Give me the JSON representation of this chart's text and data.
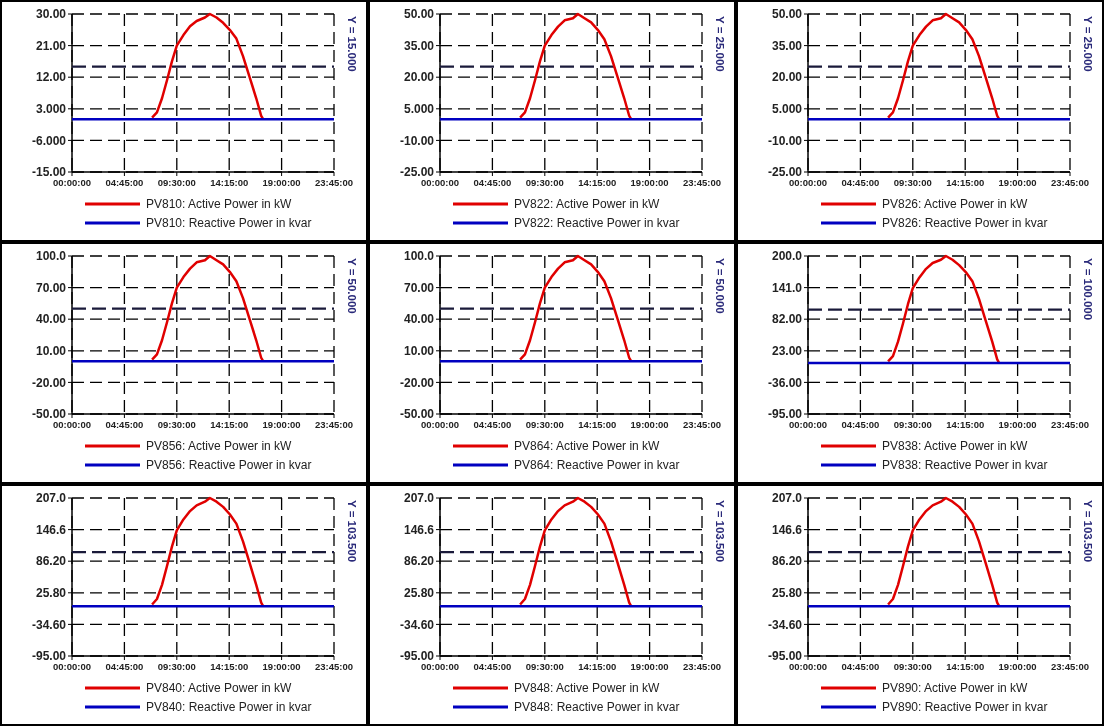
{
  "chart_data": [
    {
      "type": "line",
      "xlim": [
        0,
        23.75
      ],
      "xticks": [
        {
          "value": 0,
          "label": "00:00:00"
        },
        {
          "value": 4.75,
          "label": "04:45:00"
        },
        {
          "value": 9.5,
          "label": "09:30:00"
        },
        {
          "value": 14.25,
          "label": "14:15:00"
        },
        {
          "value": 19,
          "label": "19:00:00"
        },
        {
          "value": 23.75,
          "label": "23:45:00"
        }
      ],
      "ylim": [
        -15,
        30
      ],
      "yticks": [
        {
          "value": -15,
          "label": "-15.00"
        },
        {
          "value": -6,
          "label": "-6.000"
        },
        {
          "value": 3,
          "label": "3.000"
        },
        {
          "value": 12,
          "label": "12.00"
        },
        {
          "value": 21,
          "label": "21.00"
        },
        {
          "value": 30,
          "label": "30.00"
        }
      ],
      "grid": true,
      "legend": "bottom",
      "ref_lines": [
        {
          "axis": "y",
          "value": 15,
          "label": "Y = 15.000",
          "color": "#1a1a3a",
          "line_style": "dashed"
        }
      ],
      "series": [
        {
          "name": "PV810: Active Power in kW",
          "color": "#e00000",
          "x": [
            7.26,
            7.7,
            8.16,
            8.6,
            9.06,
            9.5,
            10.1,
            10.7,
            11.3,
            12.05,
            12.5,
            13.1,
            13.7,
            14.3,
            14.9,
            15.5,
            16.1,
            16.7,
            17.15,
            17.3
          ],
          "values": [
            0.5,
            2,
            6,
            11,
            16.5,
            21,
            24,
            26.5,
            28,
            29,
            30,
            29,
            27.5,
            25.5,
            23,
            18,
            12,
            6,
            1,
            0.2
          ]
        },
        {
          "name": "PV810: Reactive Power in kvar",
          "color": "#0000c0",
          "x": [
            0,
            23.75
          ],
          "values": [
            0,
            0
          ]
        }
      ]
    },
    {
      "type": "line",
      "xlim": [
        0,
        23.75
      ],
      "xticks": [
        {
          "value": 0,
          "label": "00:00:00"
        },
        {
          "value": 4.75,
          "label": "04:45:00"
        },
        {
          "value": 9.5,
          "label": "09:30:00"
        },
        {
          "value": 14.25,
          "label": "14:15:00"
        },
        {
          "value": 19,
          "label": "19:00:00"
        },
        {
          "value": 23.75,
          "label": "23:45:00"
        }
      ],
      "ylim": [
        -25,
        50
      ],
      "yticks": [
        {
          "value": -25,
          "label": "-25.00"
        },
        {
          "value": -10,
          "label": "-10.00"
        },
        {
          "value": 5,
          "label": "5.000"
        },
        {
          "value": 20,
          "label": "20.00"
        },
        {
          "value": 35,
          "label": "35.00"
        },
        {
          "value": 50,
          "label": "50.00"
        }
      ],
      "grid": true,
      "legend": "bottom",
      "ref_lines": [
        {
          "axis": "y",
          "value": 25,
          "label": "Y = 25.000",
          "color": "#1a1a3a",
          "line_style": "dashed"
        }
      ],
      "series": [
        {
          "name": "PV822: Active Power in kW",
          "color": "#e00000",
          "x": [
            7.26,
            7.7,
            8.16,
            8.6,
            9.06,
            9.5,
            10.1,
            10.7,
            11.3,
            12.05,
            12.5,
            13.1,
            13.7,
            14.3,
            14.9,
            15.5,
            16.1,
            16.7,
            17.15,
            17.3
          ],
          "values": [
            0.8,
            3.3,
            10,
            18.3,
            27.5,
            35,
            40,
            44,
            47,
            48,
            50,
            48,
            46,
            42.5,
            38,
            30,
            20,
            10,
            1.7,
            0.3
          ]
        },
        {
          "name": "PV822: Reactive Power in kvar",
          "color": "#0000c0",
          "x": [
            0,
            23.75
          ],
          "values": [
            0,
            0
          ]
        }
      ]
    },
    {
      "type": "line",
      "xlim": [
        0,
        23.75
      ],
      "xticks": [
        {
          "value": 0,
          "label": "00:00:00"
        },
        {
          "value": 4.75,
          "label": "04:45:00"
        },
        {
          "value": 9.5,
          "label": "09:30:00"
        },
        {
          "value": 14.25,
          "label": "14:15:00"
        },
        {
          "value": 19,
          "label": "19:00:00"
        },
        {
          "value": 23.75,
          "label": "23:45:00"
        }
      ],
      "ylim": [
        -25,
        50
      ],
      "yticks": [
        {
          "value": -25,
          "label": "-25.00"
        },
        {
          "value": -10,
          "label": "-10.00"
        },
        {
          "value": 5,
          "label": "5.000"
        },
        {
          "value": 20,
          "label": "20.00"
        },
        {
          "value": 35,
          "label": "35.00"
        },
        {
          "value": 50,
          "label": "50.00"
        }
      ],
      "grid": true,
      "legend": "bottom",
      "ref_lines": [
        {
          "axis": "y",
          "value": 25,
          "label": "Y = 25.000",
          "color": "#1a1a3a",
          "line_style": "dashed"
        }
      ],
      "series": [
        {
          "name": "PV826: Active Power in kW",
          "color": "#e00000",
          "x": [
            7.26,
            7.7,
            8.16,
            8.6,
            9.06,
            9.5,
            10.1,
            10.7,
            11.3,
            12.05,
            12.5,
            13.1,
            13.7,
            14.3,
            14.9,
            15.5,
            16.1,
            16.7,
            17.15,
            17.3
          ],
          "values": [
            0.8,
            3.3,
            10,
            18.3,
            27.5,
            35,
            40,
            44,
            47,
            48,
            50,
            48,
            46,
            42.5,
            38,
            30,
            20,
            10,
            1.7,
            0.3
          ]
        },
        {
          "name": "PV826: Reactive Power in kvar",
          "color": "#0000c0",
          "x": [
            0,
            23.75
          ],
          "values": [
            0,
            0
          ]
        }
      ]
    },
    {
      "type": "line",
      "xlim": [
        0,
        23.75
      ],
      "xticks": [
        {
          "value": 0,
          "label": "00:00:00"
        },
        {
          "value": 4.75,
          "label": "04:45:00"
        },
        {
          "value": 9.5,
          "label": "09:30:00"
        },
        {
          "value": 14.25,
          "label": "14:15:00"
        },
        {
          "value": 19,
          "label": "19:00:00"
        },
        {
          "value": 23.75,
          "label": "23:45:00"
        }
      ],
      "ylim": [
        -50,
        100
      ],
      "yticks": [
        {
          "value": -50,
          "label": "-50.00"
        },
        {
          "value": -20,
          "label": "-20.00"
        },
        {
          "value": 10,
          "label": "10.00"
        },
        {
          "value": 40,
          "label": "40.00"
        },
        {
          "value": 70,
          "label": "70.00"
        },
        {
          "value": 100,
          "label": "100.0"
        }
      ],
      "grid": true,
      "legend": "bottom",
      "ref_lines": [
        {
          "axis": "y",
          "value": 50,
          "label": "Y = 50.000",
          "color": "#1a1a3a",
          "line_style": "dashed"
        }
      ],
      "series": [
        {
          "name": "PV856: Active Power in kW",
          "color": "#e00000",
          "x": [
            7.26,
            7.7,
            8.16,
            8.6,
            9.06,
            9.5,
            10.1,
            10.7,
            11.3,
            12.05,
            12.5,
            13.1,
            13.7,
            14.3,
            14.9,
            15.5,
            16.1,
            16.7,
            17.15,
            17.3
          ],
          "values": [
            1.6,
            6.6,
            20,
            36.6,
            55,
            70,
            80,
            88,
            94,
            96,
            100,
            96,
            92,
            85,
            76,
            60,
            40,
            20,
            3.4,
            0.6
          ]
        },
        {
          "name": "PV856: Reactive Power in kvar",
          "color": "#0000c0",
          "x": [
            0,
            23.75
          ],
          "values": [
            0,
            0
          ]
        }
      ]
    },
    {
      "type": "line",
      "xlim": [
        0,
        23.75
      ],
      "xticks": [
        {
          "value": 0,
          "label": "00:00:00"
        },
        {
          "value": 4.75,
          "label": "04:45:00"
        },
        {
          "value": 9.5,
          "label": "09:30:00"
        },
        {
          "value": 14.25,
          "label": "14:15:00"
        },
        {
          "value": 19,
          "label": "19:00:00"
        },
        {
          "value": 23.75,
          "label": "23:45:00"
        }
      ],
      "ylim": [
        -50,
        100
      ],
      "yticks": [
        {
          "value": -50,
          "label": "-50.00"
        },
        {
          "value": -20,
          "label": "-20.00"
        },
        {
          "value": 10,
          "label": "10.00"
        },
        {
          "value": 40,
          "label": "40.00"
        },
        {
          "value": 70,
          "label": "70.00"
        },
        {
          "value": 100,
          "label": "100.0"
        }
      ],
      "grid": true,
      "legend": "bottom",
      "ref_lines": [
        {
          "axis": "y",
          "value": 50,
          "label": "Y = 50.000",
          "color": "#1a1a3a",
          "line_style": "dashed"
        }
      ],
      "series": [
        {
          "name": "PV864: Active Power in kW",
          "color": "#e00000",
          "x": [
            7.26,
            7.7,
            8.16,
            8.6,
            9.06,
            9.5,
            10.1,
            10.7,
            11.3,
            12.05,
            12.5,
            13.1,
            13.7,
            14.3,
            14.9,
            15.5,
            16.1,
            16.7,
            17.15,
            17.3
          ],
          "values": [
            1.6,
            6.6,
            20,
            36.6,
            55,
            70,
            80,
            88,
            94,
            96,
            100,
            96,
            92,
            85,
            76,
            60,
            40,
            20,
            3.4,
            0.6
          ]
        },
        {
          "name": "PV864: Reactive Power in kvar",
          "color": "#0000c0",
          "x": [
            0,
            23.75
          ],
          "values": [
            0,
            0
          ]
        }
      ]
    },
    {
      "type": "line",
      "xlim": [
        0,
        23.75
      ],
      "xticks": [
        {
          "value": 0,
          "label": "00:00:00"
        },
        {
          "value": 4.75,
          "label": "04:45:00"
        },
        {
          "value": 9.5,
          "label": "09:30:00"
        },
        {
          "value": 14.25,
          "label": "14:15:00"
        },
        {
          "value": 19,
          "label": "19:00:00"
        },
        {
          "value": 23.75,
          "label": "23:45:00"
        }
      ],
      "ylim": [
        -95,
        200
      ],
      "yticks": [
        {
          "value": -95,
          "label": "-95.00"
        },
        {
          "value": -36,
          "label": "-36.00"
        },
        {
          "value": 23,
          "label": "23.00"
        },
        {
          "value": 82,
          "label": "82.00"
        },
        {
          "value": 141,
          "label": "141.0"
        },
        {
          "value": 200,
          "label": "200.0"
        }
      ],
      "grid": true,
      "legend": "bottom",
      "ref_lines": [
        {
          "axis": "y",
          "value": 100,
          "label": "Y = 100.000",
          "color": "#1a1a3a",
          "line_style": "dashed"
        }
      ],
      "series": [
        {
          "name": "PV838: Active Power in kW",
          "color": "#e00000",
          "x": [
            7.26,
            7.7,
            8.16,
            8.6,
            9.06,
            9.5,
            10.1,
            10.7,
            11.3,
            12.05,
            12.5,
            13.1,
            13.7,
            14.3,
            14.9,
            15.5,
            16.1,
            16.7,
            17.15,
            17.3
          ],
          "values": [
            3.3,
            13,
            40,
            73,
            110,
            140,
            160,
            176,
            187,
            193,
            200,
            193,
            183,
            170,
            153,
            120,
            80,
            40,
            7,
            1.3
          ]
        },
        {
          "name": "PV838: Reactive Power in kvar",
          "color": "#0000c0",
          "x": [
            0,
            23.75
          ],
          "values": [
            0,
            0
          ]
        }
      ]
    },
    {
      "type": "line",
      "xlim": [
        0,
        23.75
      ],
      "xticks": [
        {
          "value": 0,
          "label": "00:00:00"
        },
        {
          "value": 4.75,
          "label": "04:45:00"
        },
        {
          "value": 9.5,
          "label": "09:30:00"
        },
        {
          "value": 14.25,
          "label": "14:15:00"
        },
        {
          "value": 19,
          "label": "19:00:00"
        },
        {
          "value": 23.75,
          "label": "23:45:00"
        }
      ],
      "ylim": [
        -95,
        207
      ],
      "yticks": [
        {
          "value": -95,
          "label": "-95.00"
        },
        {
          "value": -34.6,
          "label": "-34.60"
        },
        {
          "value": 25.8,
          "label": "25.80"
        },
        {
          "value": 86.2,
          "label": "86.20"
        },
        {
          "value": 146.6,
          "label": "146.6"
        },
        {
          "value": 207,
          "label": "207.0"
        }
      ],
      "grid": true,
      "legend": "bottom",
      "ref_lines": [
        {
          "axis": "y",
          "value": 103.5,
          "label": "Y = 103.500",
          "color": "#1a1a3a",
          "line_style": "dashed"
        }
      ],
      "series": [
        {
          "name": "PV840: Active Power in kW",
          "color": "#e00000",
          "x": [
            7.26,
            7.7,
            8.16,
            8.6,
            9.06,
            9.5,
            10.1,
            10.7,
            11.3,
            12.05,
            12.5,
            13.1,
            13.7,
            14.3,
            14.9,
            15.5,
            16.1,
            16.7,
            17.15,
            17.3
          ],
          "values": [
            3.5,
            14,
            41,
            76,
            114,
            145,
            166,
            182,
            193,
            200,
            207,
            200,
            190,
            176,
            158,
            124,
            83,
            41,
            7,
            1.4
          ]
        },
        {
          "name": "PV840: Reactive Power in kvar",
          "color": "#0000c0",
          "x": [
            0,
            23.75
          ],
          "values": [
            0,
            0
          ]
        }
      ]
    },
    {
      "type": "line",
      "xlim": [
        0,
        23.75
      ],
      "xticks": [
        {
          "value": 0,
          "label": "00:00:00"
        },
        {
          "value": 4.75,
          "label": "04:45:00"
        },
        {
          "value": 9.5,
          "label": "09:30:00"
        },
        {
          "value": 14.25,
          "label": "14:15:00"
        },
        {
          "value": 19,
          "label": "19:00:00"
        },
        {
          "value": 23.75,
          "label": "23:45:00"
        }
      ],
      "ylim": [
        -95,
        207
      ],
      "yticks": [
        {
          "value": -95,
          "label": "-95.00"
        },
        {
          "value": -34.6,
          "label": "-34.60"
        },
        {
          "value": 25.8,
          "label": "25.80"
        },
        {
          "value": 86.2,
          "label": "86.20"
        },
        {
          "value": 146.6,
          "label": "146.6"
        },
        {
          "value": 207,
          "label": "207.0"
        }
      ],
      "grid": true,
      "legend": "bottom",
      "ref_lines": [
        {
          "axis": "y",
          "value": 103.5,
          "label": "Y = 103.500",
          "color": "#1a1a3a",
          "line_style": "dashed"
        }
      ],
      "series": [
        {
          "name": "PV848: Active Power in kW",
          "color": "#e00000",
          "x": [
            7.26,
            7.7,
            8.16,
            8.6,
            9.06,
            9.5,
            10.1,
            10.7,
            11.3,
            12.05,
            12.5,
            13.1,
            13.7,
            14.3,
            14.9,
            15.5,
            16.1,
            16.7,
            17.15,
            17.3
          ],
          "values": [
            3.5,
            14,
            41,
            76,
            114,
            145,
            166,
            182,
            193,
            200,
            207,
            200,
            190,
            176,
            158,
            124,
            83,
            41,
            7,
            1.4
          ]
        },
        {
          "name": "PV848: Reactive Power in kvar",
          "color": "#0000c0",
          "x": [
            0,
            23.75
          ],
          "values": [
            0,
            0
          ]
        }
      ]
    },
    {
      "type": "line",
      "xlim": [
        0,
        23.75
      ],
      "xticks": [
        {
          "value": 0,
          "label": "00:00:00"
        },
        {
          "value": 4.75,
          "label": "04:45:00"
        },
        {
          "value": 9.5,
          "label": "09:30:00"
        },
        {
          "value": 14.25,
          "label": "14:15:00"
        },
        {
          "value": 19,
          "label": "19:00:00"
        },
        {
          "value": 23.75,
          "label": "23:45:00"
        }
      ],
      "ylim": [
        -95,
        207
      ],
      "yticks": [
        {
          "value": -95,
          "label": "-95.00"
        },
        {
          "value": -34.6,
          "label": "-34.60"
        },
        {
          "value": 25.8,
          "label": "25.80"
        },
        {
          "value": 86.2,
          "label": "86.20"
        },
        {
          "value": 146.6,
          "label": "146.6"
        },
        {
          "value": 207,
          "label": "207.0"
        }
      ],
      "grid": true,
      "legend": "bottom",
      "ref_lines": [
        {
          "axis": "y",
          "value": 103.5,
          "label": "Y = 103.500",
          "color": "#1a1a3a",
          "line_style": "dashed"
        }
      ],
      "series": [
        {
          "name": "PV890: Active Power in kW",
          "color": "#e00000",
          "x": [
            7.26,
            7.7,
            8.16,
            8.6,
            9.06,
            9.5,
            10.1,
            10.7,
            11.3,
            12.05,
            12.5,
            13.1,
            13.7,
            14.3,
            14.9,
            15.5,
            16.1,
            16.7,
            17.15,
            17.3
          ],
          "values": [
            3.5,
            14,
            41,
            76,
            114,
            145,
            166,
            182,
            193,
            200,
            207,
            200,
            190,
            176,
            158,
            124,
            83,
            41,
            7,
            1.4
          ]
        },
        {
          "name": "PV890: Reactive Power in kvar",
          "color": "#0000c0",
          "x": [
            0,
            23.75
          ],
          "values": [
            0,
            0
          ]
        }
      ]
    }
  ]
}
